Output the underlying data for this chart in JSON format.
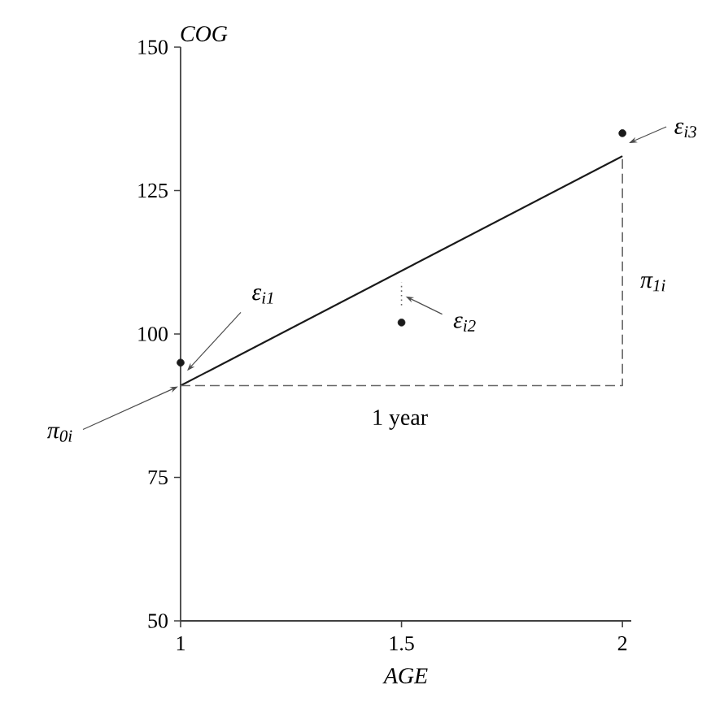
{
  "chart_data": {
    "type": "line",
    "xlabel": "AGE",
    "ylabel": "COG",
    "xlim": [
      1,
      2.02
    ],
    "ylim": [
      50,
      150
    ],
    "xticks": [
      1,
      1.5,
      2
    ],
    "yticks": [
      50,
      75,
      100,
      125,
      150
    ],
    "series": [
      {
        "color": "#1a1a1a",
        "x": [
          1,
          2
        ],
        "values": [
          91,
          131
        ],
        "line_style": "solid",
        "marker": "none"
      },
      {
        "type": "scatter",
        "color": "#1a1a1a",
        "x": [
          1,
          1.5,
          2
        ],
        "values": [
          95,
          102,
          135
        ],
        "marker": "circle"
      },
      {
        "color": "#666666",
        "x": [
          1,
          2,
          2
        ],
        "values": [
          91,
          91,
          131
        ],
        "line_style": "dashed",
        "marker": "none"
      },
      {
        "color": "#666666",
        "x": [
          1.5,
          1.5
        ],
        "values": [
          105,
          109
        ],
        "line_style": "dotted",
        "marker": "none"
      }
    ],
    "annotations": [
      {
        "text": "ε$_{i1}$",
        "x": 1,
        "y": 95
      },
      {
        "text": "ε$_{i2}$",
        "x": 1.5,
        "y": 106
      },
      {
        "text": "ε$_{i3}$",
        "x": 2,
        "y": 133
      },
      {
        "text": "π$_{1i}$",
        "x": 2,
        "y": 111
      },
      {
        "text": "1 year",
        "x": 1.5,
        "y": 91
      },
      {
        "text": "π$_{0i}$",
        "x": 1,
        "y": 91
      }
    ]
  }
}
